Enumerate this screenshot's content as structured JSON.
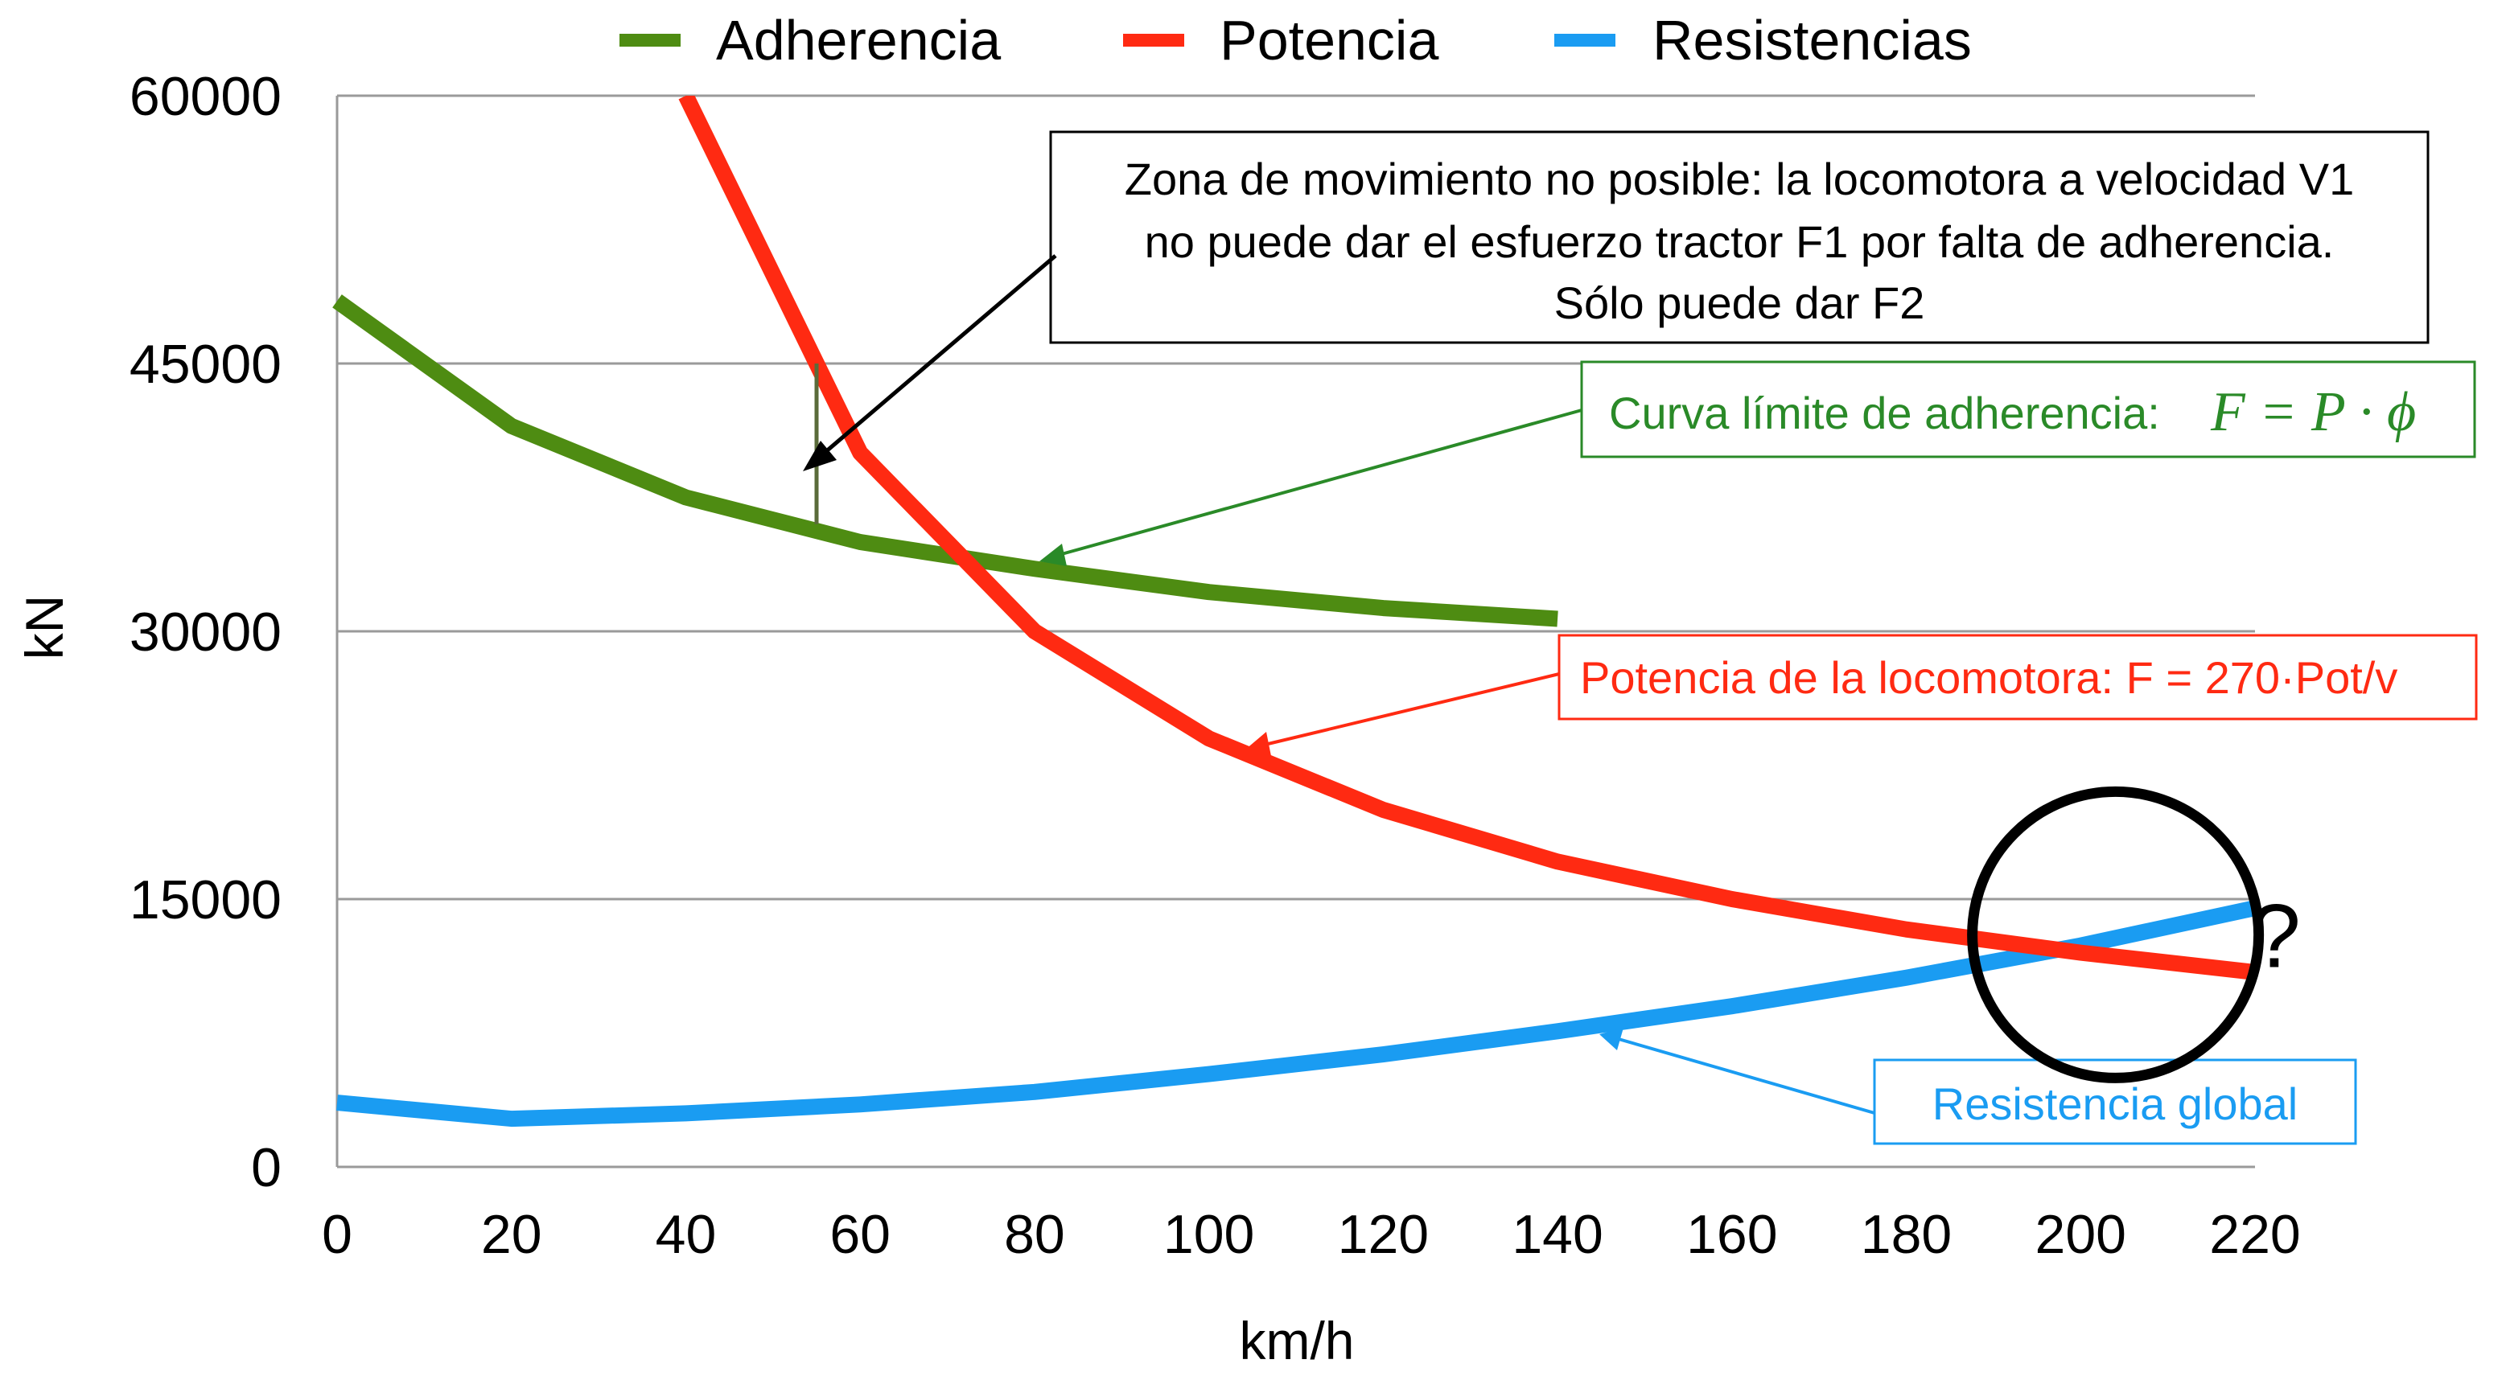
{
  "chart_data": {
    "type": "line",
    "title": "",
    "xlabel": "km/h",
    "ylabel": "kN",
    "xlim": [
      0,
      220
    ],
    "ylim": [
      0,
      60000
    ],
    "x_ticks": [
      "0",
      "20",
      "40",
      "60",
      "80",
      "100",
      "120",
      "140",
      "160",
      "180",
      "200",
      "220"
    ],
    "y_ticks": [
      "0",
      "15000",
      "30000",
      "45000",
      "60000"
    ],
    "grid": "horizontal",
    "legend_position": "top",
    "series": [
      {
        "name": "Adherencia",
        "color": "#4e8c12",
        "x": [
          0,
          20,
          40,
          60,
          80,
          100,
          120,
          140
        ],
        "values": [
          48500,
          41500,
          37500,
          35000,
          33500,
          32200,
          31300,
          30700
        ]
      },
      {
        "name": "Potencia",
        "color": "#ff2a12",
        "x": [
          40,
          60,
          80,
          100,
          120,
          140,
          160,
          180,
          200,
          220
        ],
        "values": [
          60000,
          40000,
          30000,
          24000,
          20000,
          17100,
          15000,
          13300,
          12000,
          10900
        ]
      },
      {
        "name": "Resistencias",
        "color": "#1a9cf2",
        "x": [
          0,
          20,
          40,
          60,
          80,
          100,
          120,
          140,
          160,
          180,
          200,
          220
        ],
        "values": [
          3600,
          2700,
          3000,
          3500,
          4200,
          5200,
          6300,
          7600,
          9000,
          10600,
          12400,
          14500
        ]
      }
    ],
    "annotations": {
      "zone_box": [
        "Zona de movimiento no posible: la locomotora a velocidad V1",
        "no puede dar el esfuerzo tractor F1 por falta de adherencia.",
        "Sólo puede dar F2"
      ],
      "adherence_label": "Curva límite de adherencia:",
      "adherence_formula": "F = P · ϕ",
      "power_label": "Potencia de la locomotora: F = 270·Pot/v",
      "resistance_label": "Resistencia global",
      "question_mark": "?",
      "vertical_marker": {
        "x": 55,
        "y_from": 36000,
        "y_to": 45000
      },
      "circle_center": {
        "x": 204,
        "y": 13000
      }
    }
  }
}
